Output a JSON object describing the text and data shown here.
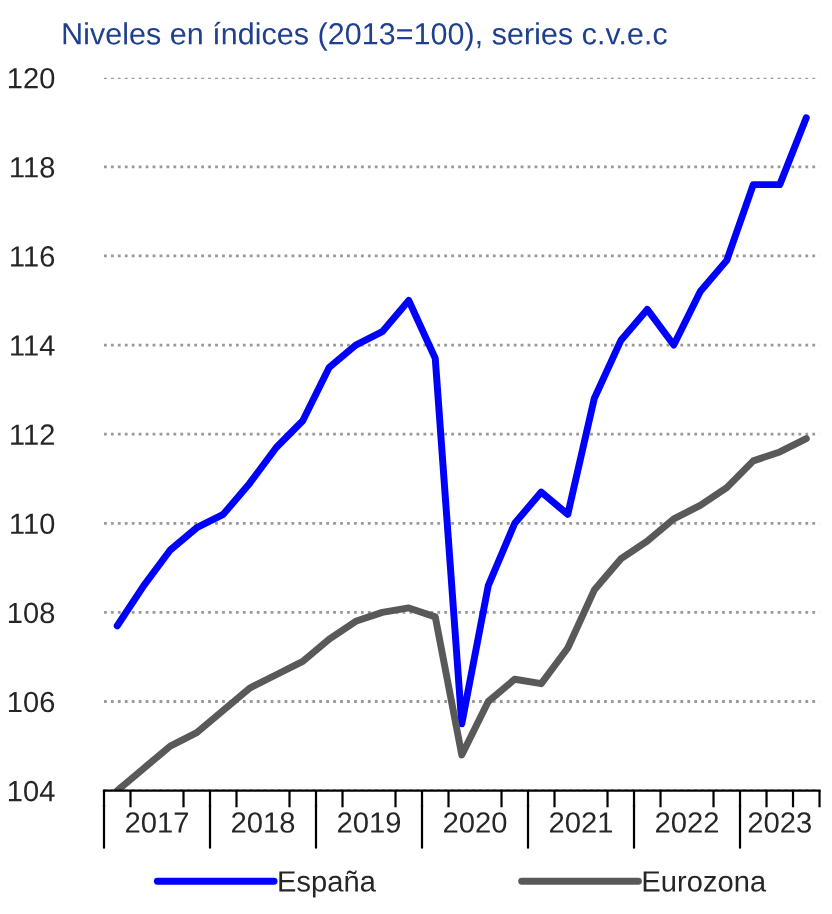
{
  "chart_data": {
    "type": "line",
    "title": "Niveles en índices (2013=100), series c.v.e.c",
    "x": [
      2017.125,
      2017.375,
      2017.625,
      2017.875,
      2018.125,
      2018.375,
      2018.625,
      2018.875,
      2019.125,
      2019.375,
      2019.625,
      2019.875,
      2020.125,
      2020.375,
      2020.625,
      2020.875,
      2021.125,
      2021.375,
      2021.625,
      2021.875,
      2022.125,
      2022.375,
      2022.625,
      2022.875,
      2023.125,
      2023.375,
      2023.625
    ],
    "series": [
      {
        "name": "España",
        "color": "#0000ff",
        "values": [
          107.7,
          108.6,
          109.4,
          109.9,
          110.2,
          110.9,
          111.7,
          112.3,
          113.5,
          114.0,
          114.3,
          115.0,
          113.7,
          105.5,
          108.6,
          110.0,
          110.7,
          110.2,
          112.8,
          114.1,
          114.8,
          114.0,
          115.2,
          115.9,
          117.6,
          117.6,
          119.1
        ]
      },
      {
        "name": "Eurozona",
        "color": "#595959",
        "values": [
          104.0,
          104.5,
          105.0,
          105.3,
          105.8,
          106.3,
          106.6,
          106.9,
          107.4,
          107.8,
          108.0,
          108.1,
          107.9,
          104.8,
          106.0,
          106.5,
          106.4,
          107.2,
          108.5,
          109.2,
          109.6,
          110.1,
          110.4,
          110.8,
          111.4,
          111.6,
          111.9
        ]
      }
    ],
    "xlim": [
      2017,
      2023.75
    ],
    "xticks": [
      {
        "value": 2017,
        "label": null
      },
      {
        "value": 2017.25,
        "label": null
      },
      {
        "value": 2017.5,
        "label": "2017"
      },
      {
        "value": 2017.75,
        "label": null
      },
      {
        "value": 2018,
        "label": null
      },
      {
        "value": 2018.25,
        "label": null
      },
      {
        "value": 2018.5,
        "label": "2018"
      },
      {
        "value": 2018.75,
        "label": null
      },
      {
        "value": 2019,
        "label": null
      },
      {
        "value": 2019.25,
        "label": null
      },
      {
        "value": 2019.5,
        "label": "2019"
      },
      {
        "value": 2019.75,
        "label": null
      },
      {
        "value": 2020,
        "label": null
      },
      {
        "value": 2020.25,
        "label": null
      },
      {
        "value": 2020.5,
        "label": "2020"
      },
      {
        "value": 2020.75,
        "label": null
      },
      {
        "value": 2021,
        "label": null
      },
      {
        "value": 2021.25,
        "label": null
      },
      {
        "value": 2021.5,
        "label": "2021"
      },
      {
        "value": 2021.75,
        "label": null
      },
      {
        "value": 2022,
        "label": null
      },
      {
        "value": 2022.25,
        "label": null
      },
      {
        "value": 2022.5,
        "label": "2022"
      },
      {
        "value": 2022.75,
        "label": null
      },
      {
        "value": 2023,
        "label": null
      },
      {
        "value": 2023.25,
        "label": null
      },
      {
        "value": 2023.375,
        "label": "2023"
      },
      {
        "value": 2023.5,
        "label": null
      },
      {
        "value": 2023.75,
        "label": null
      }
    ],
    "ylim": [
      104,
      120
    ],
    "yticks": [
      104,
      106,
      108,
      110,
      112,
      114,
      116,
      118,
      120
    ],
    "grid": "y",
    "legend": "bottom",
    "marker": "none",
    "line_style": "solid"
  }
}
